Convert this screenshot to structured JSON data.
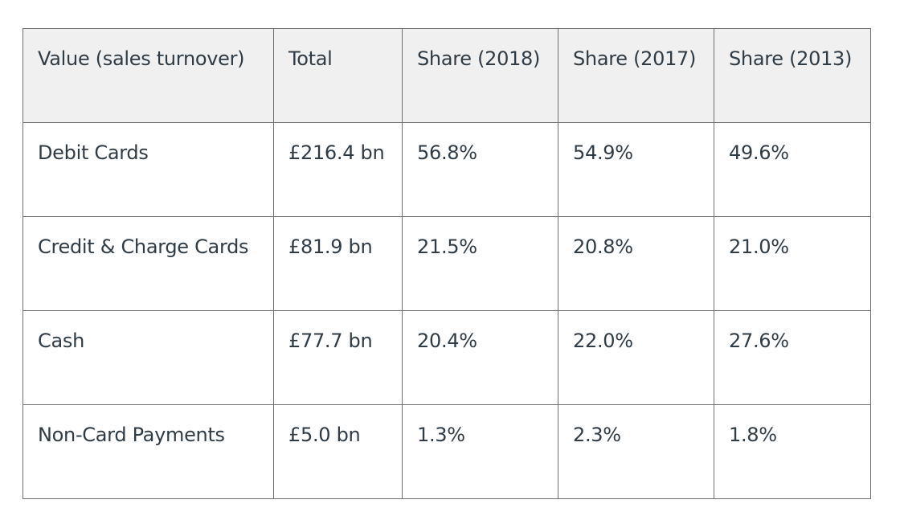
{
  "chart_data": {
    "type": "table",
    "columns": [
      "Value (sales turnover)",
      "Total",
      "Share (2018)",
      "Share (2017)",
      "Share (2013)"
    ],
    "rows": [
      [
        "Debit Cards",
        "£216.4 bn",
        "56.8%",
        "54.9%",
        "49.6%"
      ],
      [
        "Credit & Charge Cards",
        "£81.9 bn",
        "21.5%",
        "20.8%",
        "21.0%"
      ],
      [
        "Cash",
        "£77.7 bn",
        "20.4%",
        "22.0%",
        "27.6%"
      ],
      [
        "Non-Card Payments",
        "£5.0 bn",
        "1.3%",
        "2.3%",
        "1.8%"
      ]
    ]
  },
  "colors": {
    "header_background": "#f0f0f0",
    "border": "#6f6f6f",
    "text": "#2f3b45"
  }
}
